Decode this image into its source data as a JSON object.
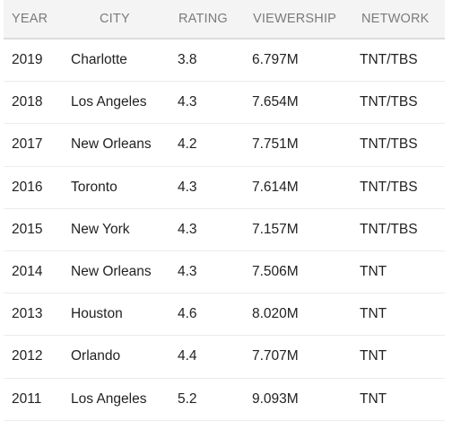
{
  "table": {
    "columns": [
      "YEAR",
      "CITY",
      "RATING",
      "VIEWERSHIP",
      "NETWORK"
    ],
    "rows": [
      [
        "2019",
        "Charlotte",
        "3.8",
        "6.797M",
        "TNT/TBS"
      ],
      [
        "2018",
        "Los Angeles",
        "4.3",
        "7.654M",
        "TNT/TBS"
      ],
      [
        "2017",
        "New Orleans",
        "4.2",
        "7.751M",
        "TNT/TBS"
      ],
      [
        "2016",
        "Toronto",
        "4.3",
        "7.614M",
        "TNT/TBS"
      ],
      [
        "2015",
        "New York",
        "4.3",
        "7.157M",
        "TNT/TBS"
      ],
      [
        "2014",
        "New Orleans",
        "4.3",
        "7.506M",
        "TNT"
      ],
      [
        "2013",
        "Houston",
        "4.6",
        "8.020M",
        "TNT"
      ],
      [
        "2012",
        "Orlando",
        "4.4",
        "7.707M",
        "TNT"
      ],
      [
        "2011",
        "Los Angeles",
        "5.2",
        "9.093M",
        "TNT"
      ]
    ]
  },
  "colors": {
    "header_background": "#f4f4f4",
    "header_text": "#7b7b7b",
    "body_text": "#222222",
    "row_divider": "#ececec"
  }
}
